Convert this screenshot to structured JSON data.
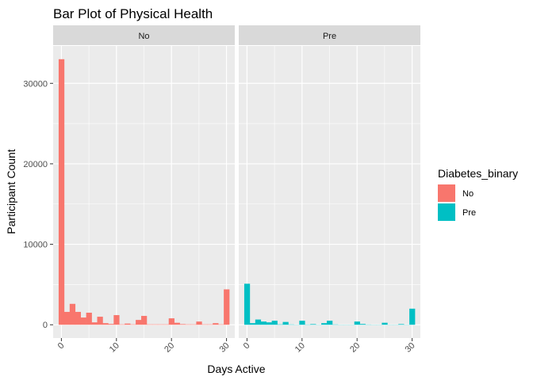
{
  "chart_data": {
    "type": "bar",
    "title": "Bar Plot of Physical Health",
    "xlabel": "Days Active",
    "ylabel": "Participant Count",
    "xlim": [
      -1.5,
      31.5
    ],
    "ylim": [
      -1650,
      34650
    ],
    "x_ticks": [
      0,
      10,
      20,
      30
    ],
    "x_tick_labels": [
      "0",
      "10",
      "20",
      "30"
    ],
    "y_ticks": [
      0,
      10000,
      20000,
      30000
    ],
    "y_tick_labels": [
      "0",
      "10000",
      "20000",
      "30000"
    ],
    "x": [
      0,
      1,
      2,
      3,
      4,
      5,
      6,
      7,
      8,
      9,
      10,
      11,
      12,
      13,
      14,
      15,
      16,
      17,
      18,
      19,
      20,
      21,
      22,
      23,
      24,
      25,
      26,
      27,
      28,
      29,
      30
    ],
    "grid": true,
    "legend": {
      "title": "Diabetes_binary",
      "position": "right",
      "entries": [
        "No",
        "Pre"
      ]
    },
    "panels": [
      {
        "strip": "No",
        "color": "#F8766D",
        "values": [
          33000,
          1600,
          2600,
          1600,
          900,
          1500,
          300,
          1000,
          200,
          100,
          1200,
          50,
          150,
          50,
          600,
          1100,
          50,
          50,
          50,
          50,
          800,
          250,
          80,
          50,
          50,
          400,
          50,
          50,
          200,
          50,
          4400
        ]
      },
      {
        "strip": "Pre",
        "color": "#00BFC4",
        "values": [
          5100,
          200,
          650,
          400,
          300,
          500,
          50,
          350,
          40,
          20,
          500,
          30,
          80,
          20,
          200,
          500,
          40,
          20,
          20,
          20,
          400,
          100,
          30,
          20,
          20,
          250,
          20,
          20,
          80,
          20,
          2000
        ]
      }
    ]
  }
}
